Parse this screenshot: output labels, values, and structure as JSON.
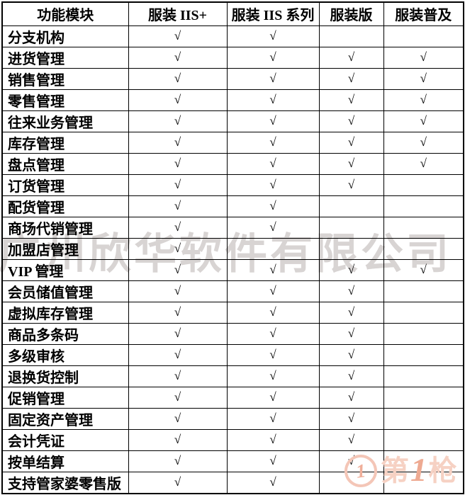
{
  "table": {
    "headers": [
      "功能模块",
      "服装 IIS+",
      "服装 IIS 系列",
      "服装版",
      "服装普及"
    ],
    "check_symbol": "√",
    "rows": [
      {
        "module": "分支机构",
        "checks": [
          1,
          1,
          0,
          0
        ]
      },
      {
        "module": "进货管理",
        "checks": [
          1,
          1,
          1,
          1
        ]
      },
      {
        "module": "销售管理",
        "checks": [
          1,
          1,
          1,
          1
        ]
      },
      {
        "module": "零售管理",
        "checks": [
          1,
          1,
          1,
          1
        ]
      },
      {
        "module": "往来业务管理",
        "checks": [
          1,
          1,
          1,
          1
        ]
      },
      {
        "module": "库存管理",
        "checks": [
          1,
          1,
          1,
          1
        ]
      },
      {
        "module": "盘点管理",
        "checks": [
          1,
          1,
          1,
          1
        ]
      },
      {
        "module": "订货管理",
        "checks": [
          1,
          1,
          1,
          0
        ]
      },
      {
        "module": "配货管理",
        "checks": [
          1,
          1,
          0,
          0
        ]
      },
      {
        "module": "商场代销管理",
        "checks": [
          1,
          1,
          0,
          0
        ]
      },
      {
        "module": "加盟店管理",
        "checks": [
          1,
          0,
          0,
          0
        ]
      },
      {
        "module": "VIP 管理",
        "checks": [
          1,
          1,
          1,
          1
        ]
      },
      {
        "module": "会员储值管理",
        "checks": [
          1,
          1,
          1,
          0
        ]
      },
      {
        "module": "虚拟库存管理",
        "checks": [
          1,
          1,
          1,
          0
        ]
      },
      {
        "module": "商品多条码",
        "checks": [
          1,
          1,
          1,
          0
        ]
      },
      {
        "module": "多级审核",
        "checks": [
          1,
          1,
          1,
          0
        ]
      },
      {
        "module": "退换货控制",
        "checks": [
          1,
          1,
          1,
          0
        ]
      },
      {
        "module": "促销管理",
        "checks": [
          1,
          1,
          1,
          0
        ]
      },
      {
        "module": "固定资产管理",
        "checks": [
          1,
          1,
          1,
          0
        ]
      },
      {
        "module": "会计凭证",
        "checks": [
          1,
          1,
          1,
          0
        ]
      },
      {
        "module": "按单结算",
        "checks": [
          1,
          1,
          1,
          0
        ]
      },
      {
        "module": "支持管家婆零售版",
        "checks": [
          1,
          1,
          0,
          0
        ]
      }
    ]
  },
  "watermarks": {
    "company_text": "广州欣华软件有限公司",
    "logo": {
      "circle_char": "1",
      "text_first": "第",
      "text_number": "1",
      "text_last": "枪"
    }
  },
  "colors": {
    "background": "#ffffff",
    "border": "#000000",
    "text": "#000000",
    "watermark_gray": "#d8d4d3",
    "watermark_salmon_light": "#f6d1c3",
    "watermark_salmon_strong": "#eeaa92"
  }
}
